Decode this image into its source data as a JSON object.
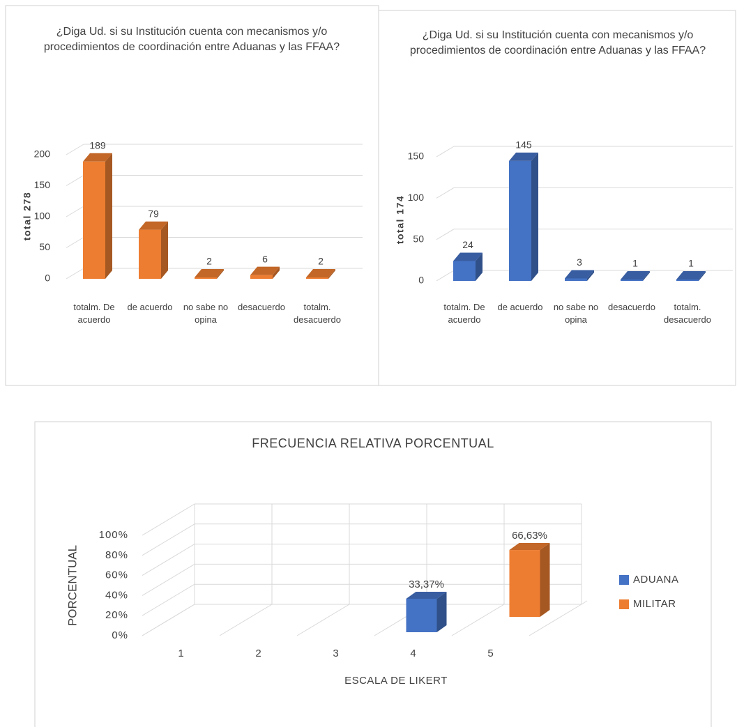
{
  "chart_data": [
    {
      "type": "bar",
      "title": "¿Diga Ud. si su Institución cuenta con mecanismos y/o procedimientos de coordinación entre Aduanas y las FFAA?",
      "y_label": "total 278",
      "categories": [
        "totalm. De acuerdo",
        "de acuerdo",
        "no sabe no opina",
        "desacuerdo",
        "totalm. desacuerdo"
      ],
      "values": [
        189,
        79,
        2,
        6,
        2
      ],
      "color": "#ed7d31",
      "ylim": [
        0,
        200
      ],
      "yticks": [
        0,
        50,
        100,
        150,
        200
      ],
      "grid": true
    },
    {
      "type": "bar",
      "title": "¿Diga Ud. si su Institución cuenta con mecanismos y/o procedimientos de coordinación entre Aduanas y las FFAA?",
      "y_label": "total 174",
      "categories": [
        "totalm. De acuerdo",
        "de acuerdo",
        "no sabe no opina",
        "desacuerdo",
        "totalm. desacuerdo"
      ],
      "values": [
        24,
        145,
        3,
        1,
        1
      ],
      "color": "#4472c4",
      "ylim": [
        0,
        150
      ],
      "yticks": [
        0,
        50,
        100,
        150
      ],
      "grid": true
    },
    {
      "type": "bar",
      "title": "FRECUENCIA RELATIVA PORCENTUAL",
      "x_label": "ESCALA DE LIKERT",
      "y_label": "PORCENTUAL",
      "categories": [
        "1",
        "2",
        "3",
        "4",
        "5"
      ],
      "series": [
        {
          "name": "ADUANA",
          "color": "#4472c4",
          "values": [
            null,
            null,
            null,
            33.37,
            null
          ],
          "value_labels": [
            null,
            null,
            null,
            "33,37%",
            null
          ]
        },
        {
          "name": "MILITAR",
          "color": "#ed7d31",
          "values": [
            null,
            null,
            null,
            null,
            66.63
          ],
          "value_labels": [
            null,
            null,
            null,
            null,
            "66,63%"
          ]
        }
      ],
      "ylim": [
        0,
        100
      ],
      "yticks": [
        {
          "value": 0,
          "label": "0%"
        },
        {
          "value": 20,
          "label": "20%"
        },
        {
          "value": 40,
          "label": "40%"
        },
        {
          "value": 60,
          "label": "60%"
        },
        {
          "value": 80,
          "label": "80%"
        },
        {
          "value": 100,
          "label": "100%"
        }
      ],
      "grid": true,
      "legend": "right"
    }
  ]
}
